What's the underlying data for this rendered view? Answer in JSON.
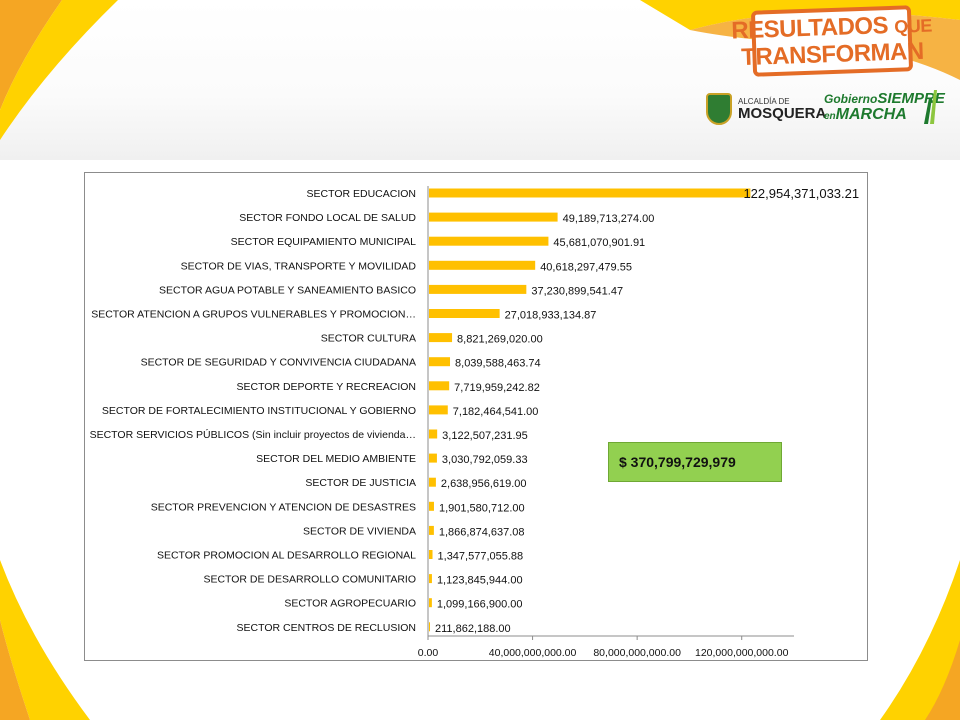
{
  "branding": {
    "banner_line1_main": "RESULTADOS",
    "banner_line1_small": "QUE",
    "banner_line2": "TRANSFORMAN",
    "alcaldia_small": "ALCALDÍA DE",
    "alcaldia_big": "MOSQUERA",
    "gobierno_small": "Gobierno",
    "gobierno_big": "SIEMPRE",
    "en_small": "en",
    "marcha_big": "MARCHA"
  },
  "colors": {
    "bar": "#ffc000",
    "accent_orange": "#e46c26",
    "total_box": "#92d050",
    "brand_green": "#1e7a2e"
  },
  "total": {
    "label": "$ 370,799,729,979"
  },
  "chart_data": {
    "type": "bar",
    "orientation": "horizontal",
    "grid": false,
    "xlim": [
      0,
      140000000000
    ],
    "ticks": [
      {
        "value": 0,
        "label": "0.00"
      },
      {
        "value": 40000000000,
        "label": "40,000,000,000.00"
      },
      {
        "value": 80000000000,
        "label": "80,000,000,000.00"
      },
      {
        "value": 120000000000,
        "label": "120,000,000,000.00"
      }
    ],
    "bars": [
      {
        "category": "SECTOR EDUCACION",
        "value": 122954371033.21,
        "label": "122,954,371,033.21"
      },
      {
        "category": "SECTOR FONDO LOCAL DE SALUD",
        "value": 49189713274.0,
        "label": "49,189,713,274.00"
      },
      {
        "category": "SECTOR EQUIPAMIENTO MUNICIPAL",
        "value": 45681070901.91,
        "label": "45,681,070,901.91"
      },
      {
        "category": "SECTOR DE VIAS, TRANSPORTE Y MOVILIDAD",
        "value": 40618297479.55,
        "label": "40,618,297,479.55"
      },
      {
        "category": "SECTOR AGUA POTABLE Y SANEAMIENTO BASICO",
        "value": 37230899541.47,
        "label": "37,230,899,541.47"
      },
      {
        "category": "SECTOR ATENCION A GRUPOS VULNERABLES Y PROMOCION…",
        "value": 27018933134.87,
        "label": "27,018,933,134.87"
      },
      {
        "category": "SECTOR CULTURA",
        "value": 8821269020.0,
        "label": "8,821,269,020.00"
      },
      {
        "category": "SECTOR  DE SEGURIDAD Y CONVIVENCIA CIUDADANA",
        "value": 8039588463.74,
        "label": "8,039,588,463.74"
      },
      {
        "category": "SECTOR DEPORTE Y RECREACION",
        "value": 7719959242.82,
        "label": "7,719,959,242.82"
      },
      {
        "category": "SECTOR DE FORTALECIMIENTO INSTITUCIONAL Y GOBIERNO",
        "value": 7182464541.0,
        "label": "7,182,464,541.00"
      },
      {
        "category": "SECTOR SERVICIOS PÚBLICOS (Sin incluir proyectos de vivienda…",
        "value": 3122507231.95,
        "label": "3,122,507,231.95"
      },
      {
        "category": "SECTOR DEL MEDIO AMBIENTE",
        "value": 3030792059.33,
        "label": "3,030,792,059.33"
      },
      {
        "category": "SECTOR DE JUSTICIA",
        "value": 2638956619.0,
        "label": "2,638,956,619.00"
      },
      {
        "category": "SECTOR PREVENCION Y ATENCION DE DESASTRES",
        "value": 1901580712.0,
        "label": "1,901,580,712.00"
      },
      {
        "category": "SECTOR DE VIVIENDA",
        "value": 1866874637.08,
        "label": "1,866,874,637.08"
      },
      {
        "category": "SECTOR PROMOCION AL DESARROLLO REGIONAL",
        "value": 1347577055.88,
        "label": "1,347,577,055.88"
      },
      {
        "category": "SECTOR DE DESARROLLO COMUNITARIO",
        "value": 1123845944.0,
        "label": "1,123,845,944.00"
      },
      {
        "category": "SECTOR AGROPECUARIO",
        "value": 1099166900.0,
        "label": "1,099,166,900.00"
      },
      {
        "category": "SECTOR CENTROS DE RECLUSION",
        "value": 211862188.0,
        "label": "211,862,188.00"
      }
    ]
  }
}
